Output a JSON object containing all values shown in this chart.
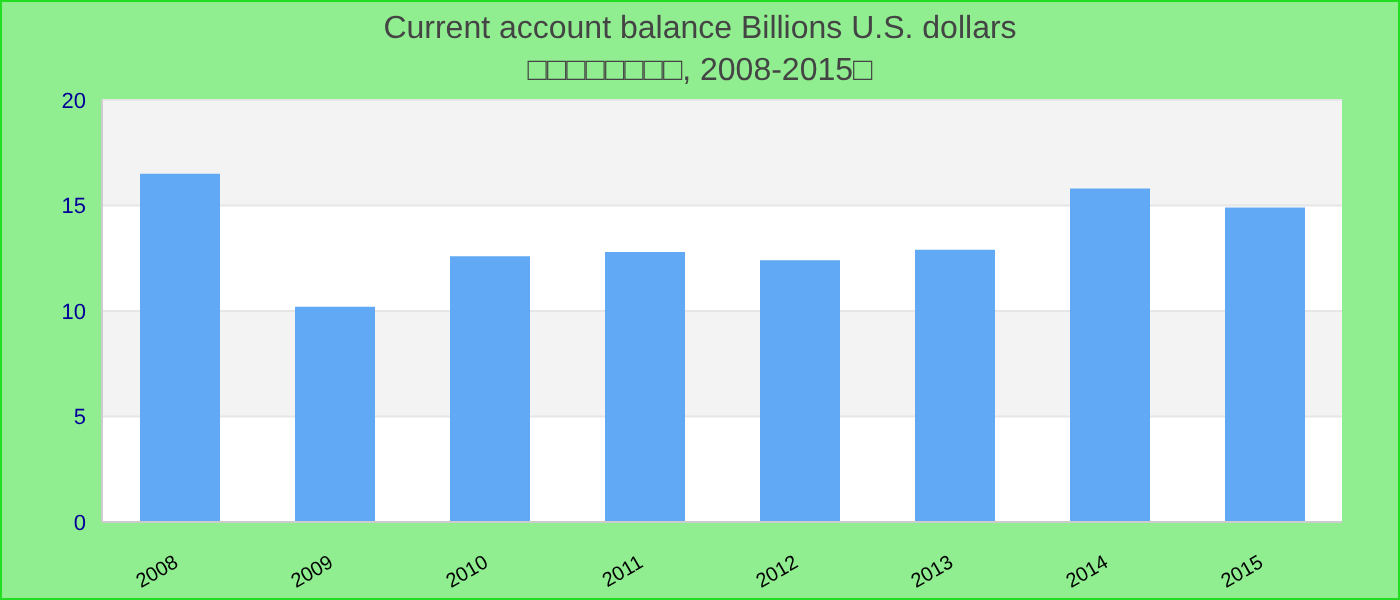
{
  "chart_data": {
    "type": "bar",
    "title": "Current account balance Billions U.S. dollars",
    "subtitle": "□□□□□□□□, 2008-2015□",
    "categories": [
      "2008",
      "2009",
      "2010",
      "2011",
      "2012",
      "2013",
      "2014",
      "2015"
    ],
    "values": [
      16.5,
      10.2,
      12.6,
      12.8,
      12.4,
      12.9,
      15.8,
      14.9
    ],
    "color": "#62a9f5",
    "ylim": [
      0,
      20
    ],
    "yticks": [
      0,
      5,
      10,
      15,
      20
    ],
    "grid": "y"
  }
}
